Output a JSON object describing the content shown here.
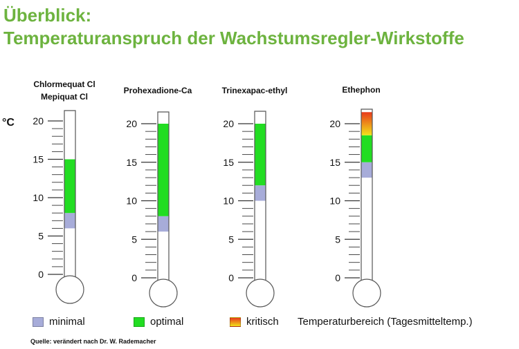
{
  "header": {
    "title_line1": "Überblick:",
    "title_line2": "Temperaturanspruch der Wachstumsregler-Wirkstoffe"
  },
  "chart_data": {
    "type": "thermometer",
    "unit": "°C",
    "ylim": [
      0,
      21.5
    ],
    "tick_labels": [
      0,
      5,
      10,
      15,
      20
    ],
    "colors": {
      "minimal": "#a7acd9",
      "optimal": "#22dd22",
      "kritisch_top": "#e83a1c",
      "kritisch_bottom": "#f2e21a",
      "outline": "#555555"
    },
    "thermometers": [
      {
        "label_lines": [
          "Chlormequat Cl",
          "Mepiquat Cl"
        ],
        "ranges": [
          {
            "type": "minimal",
            "from": 6,
            "to": 8
          },
          {
            "type": "optimal",
            "from": 8,
            "to": 15
          }
        ]
      },
      {
        "label_lines": [
          "Prohexadione-Ca"
        ],
        "ranges": [
          {
            "type": "minimal",
            "from": 6,
            "to": 8
          },
          {
            "type": "optimal",
            "from": 8,
            "to": 20
          }
        ]
      },
      {
        "label_lines": [
          "Trinexapac-ethyl"
        ],
        "ranges": [
          {
            "type": "minimal",
            "from": 10,
            "to": 12
          },
          {
            "type": "optimal",
            "from": 12,
            "to": 20
          }
        ]
      },
      {
        "label_lines": [
          "Ethephon"
        ],
        "ranges": [
          {
            "type": "minimal",
            "from": 13,
            "to": 15
          },
          {
            "type": "optimal",
            "from": 15,
            "to": 18.5
          },
          {
            "type": "kritisch",
            "from": 18.5,
            "to": 21.5
          }
        ]
      }
    ]
  },
  "legend": {
    "minimal": "minimal",
    "optimal": "optimal",
    "kritisch": "kritisch",
    "note": "Temperaturbereich (Tagesmitteltemp.)"
  },
  "source": "Quelle:  verändert nach Dr. W. Rademacher"
}
